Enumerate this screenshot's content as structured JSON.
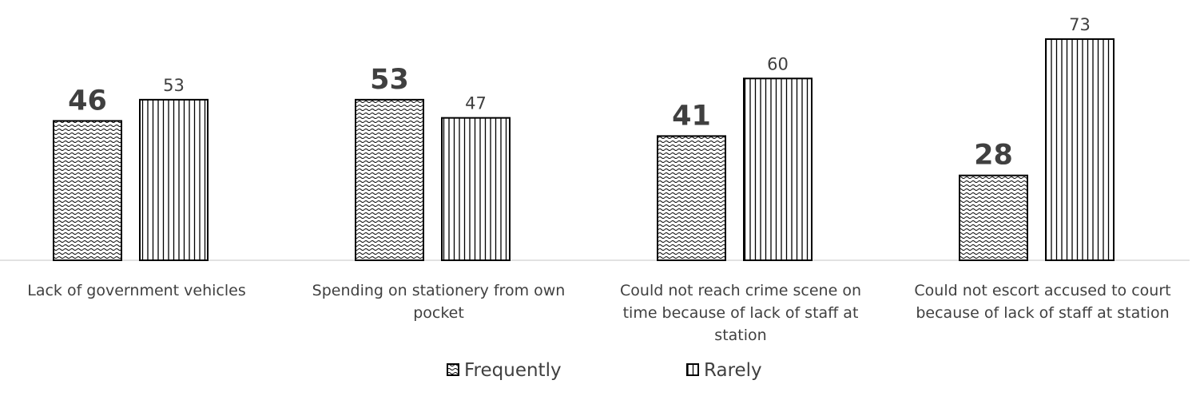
{
  "chart_data": {
    "type": "bar",
    "categories": [
      [
        "Lack of government vehicles"
      ],
      [
        "Spending on stationery from own",
        "pocket"
      ],
      [
        "Could not reach crime scene on",
        "time because of lack of staff at",
        "station"
      ],
      [
        "Could not escort accused to court",
        "because of lack of staff at station"
      ]
    ],
    "series": [
      {
        "name": "Frequently",
        "values": [
          46,
          53,
          41,
          28
        ],
        "pattern": "wave"
      },
      {
        "name": "Rarely",
        "values": [
          53,
          47,
          60,
          73
        ],
        "pattern": "vertical-lines"
      }
    ],
    "ylim": [
      0,
      80
    ],
    "grid": false,
    "legend_position": "bottom"
  }
}
